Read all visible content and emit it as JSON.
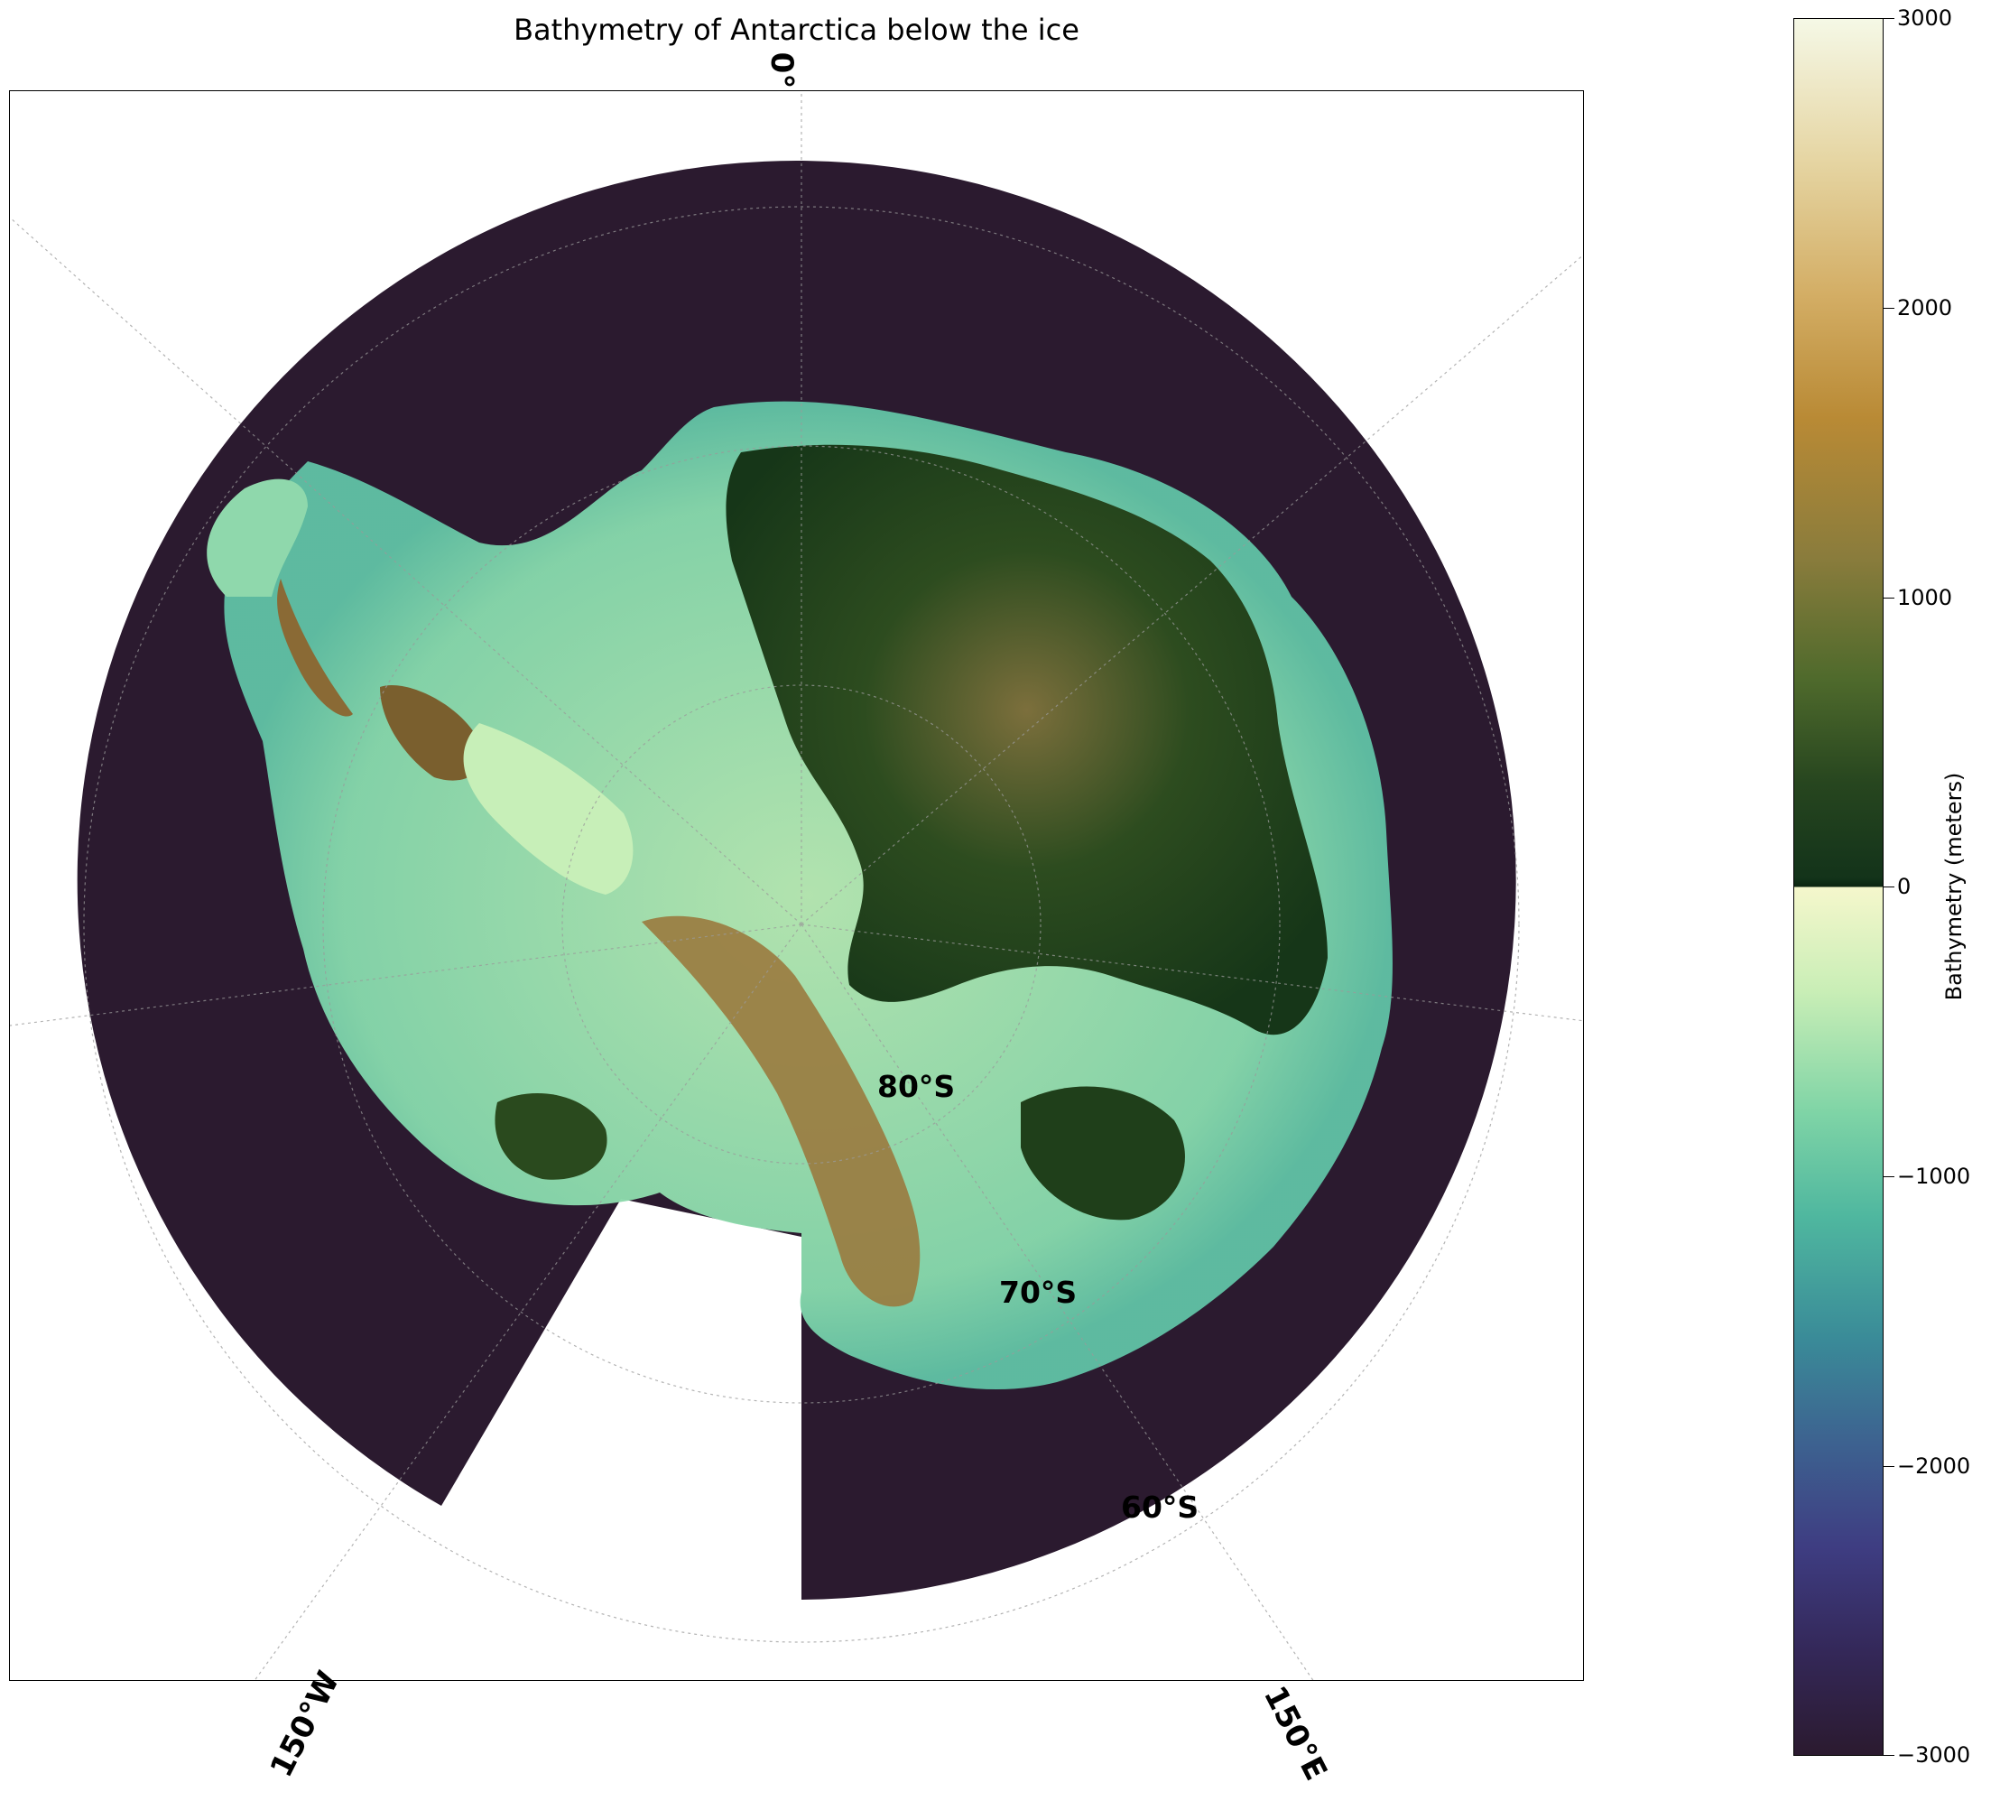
{
  "title": "Bathymetry of Antarctica below the ice",
  "meridian_labels": {
    "lon_0": "0°",
    "lon_150w": "150°W",
    "lon_150e": "150°E"
  },
  "latitude_labels": {
    "lat_80": "80°S",
    "lat_70": "70°S",
    "lat_60": "60°S"
  },
  "colorbar": {
    "label": "Bathymetry (meters)",
    "ticks": [
      "3000",
      "2000",
      "1000",
      "0",
      "−1000",
      "−2000",
      "−3000"
    ],
    "range": [
      -3000,
      3000
    ]
  },
  "colors": {
    "deep_ocean": "#2b1a2f",
    "shelf_shallow": "#8fdcaa",
    "bedrock_above_sea_level": "#1f3f1a",
    "high_bedrock": "#c49a58"
  }
}
